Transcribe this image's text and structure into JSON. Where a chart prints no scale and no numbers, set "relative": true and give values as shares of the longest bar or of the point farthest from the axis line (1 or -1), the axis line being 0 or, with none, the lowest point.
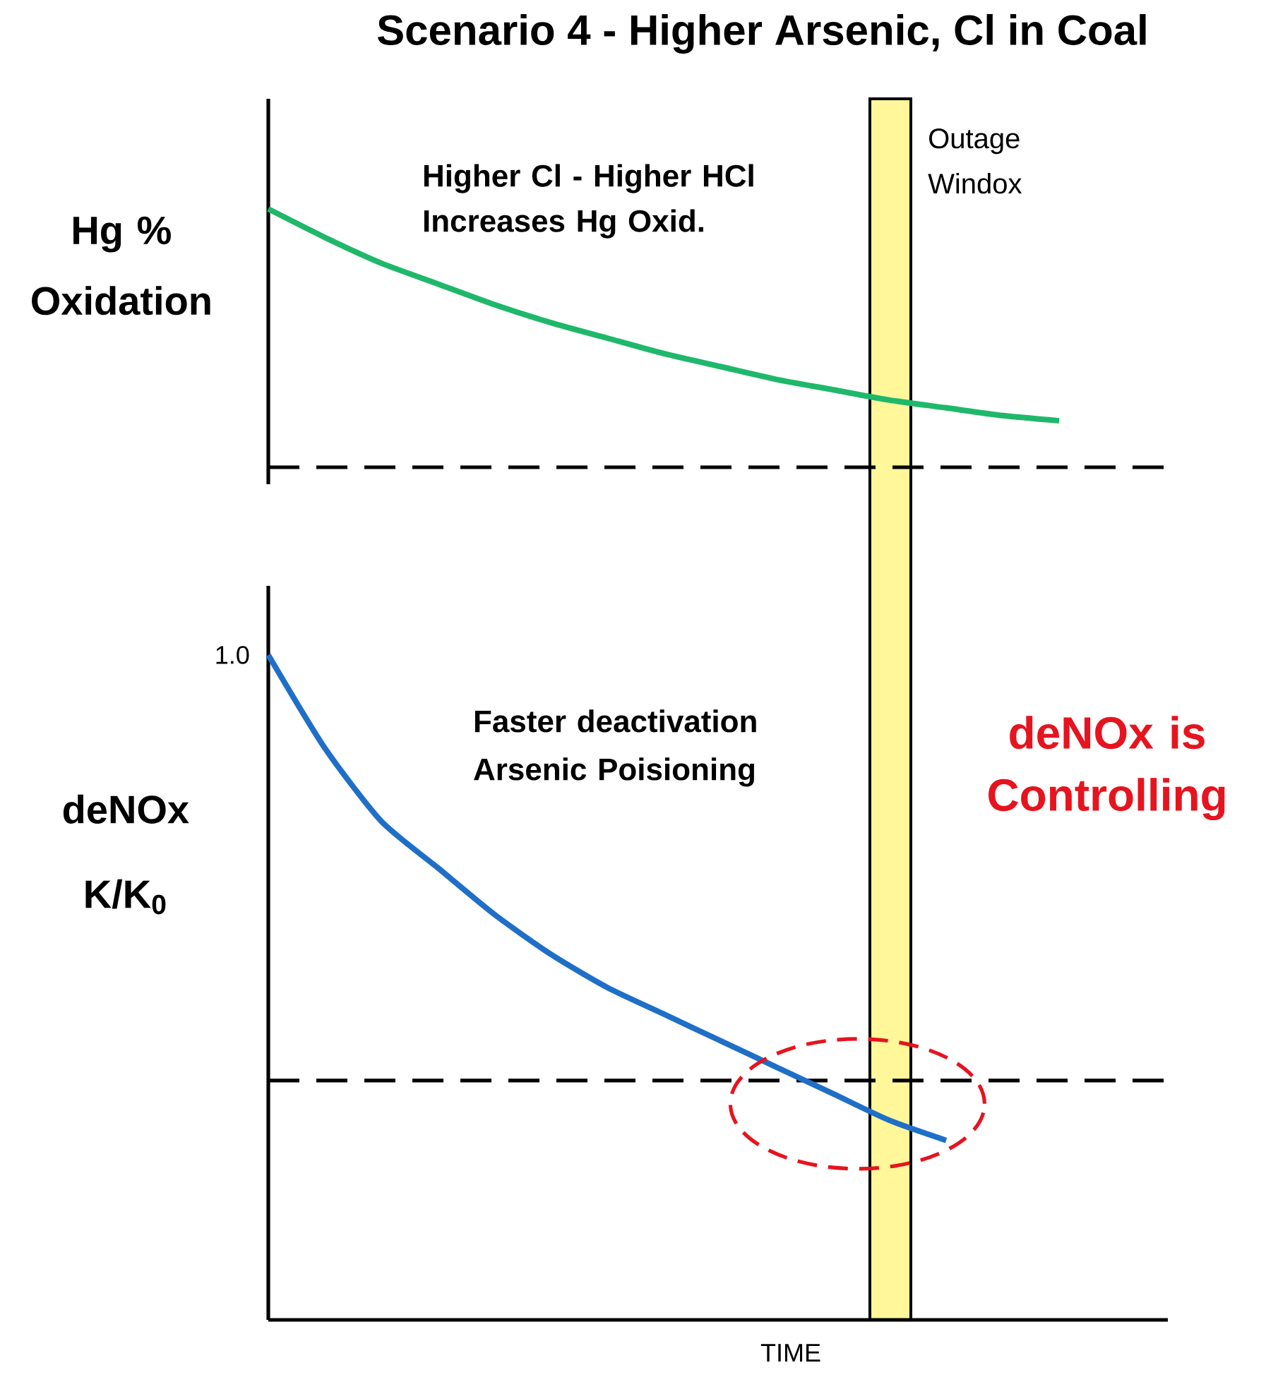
{
  "chart_data": [
    {
      "type": "line",
      "title": "Scenario 4 - Higher Arsenic, Cl in Coal",
      "ylabel": "Hg % Oxidation",
      "relative": true,
      "categories": [
        null,
        null,
        null,
        null,
        null,
        null,
        null,
        null,
        null,
        null,
        null,
        null,
        null,
        null,
        null,
        null,
        null
      ],
      "series": [
        {
          "color": "#1fb86a",
          "values": [
            1.0,
            0.89,
            0.79,
            0.71,
            0.63,
            0.56,
            0.5,
            0.44,
            0.39,
            0.34,
            0.3,
            0.26,
            0.23,
            0.2,
            0.18,
            null,
            null
          ]
        }
      ],
      "ref_lines": [
        {
          "axis": "y",
          "value": 0,
          "color": "#000000",
          "line_style": "dashed"
        }
      ],
      "annotations": [
        "Higher Cl - Higher HCl Increases Hg Oxid.",
        "Outage Windox"
      ]
    },
    {
      "type": "line",
      "xlabel": "TIME",
      "ylabel": "deNOx K/K$_{0}$",
      "relative": true,
      "categories": [
        null,
        null,
        null,
        null,
        null,
        null,
        null,
        null,
        null,
        null,
        null,
        null,
        null,
        null,
        null,
        null,
        null
      ],
      "series": [
        {
          "color": "#1f6fc8",
          "values": [
            1.0,
            0.86,
            0.75,
            0.68,
            0.61,
            0.55,
            0.5,
            0.46,
            0.42,
            0.38,
            0.34,
            0.3,
            0.27,
            null,
            null,
            null,
            null
          ]
        }
      ],
      "ref_lines": [
        {
          "axis": "y",
          "value": 0.36,
          "color": "#000000",
          "line_style": "dashed"
        }
      ],
      "annotations": [
        "1.0",
        "Faster deactivation Arsenic Poisioning",
        "deNOx is Controlling"
      ]
    }
  ]
}
